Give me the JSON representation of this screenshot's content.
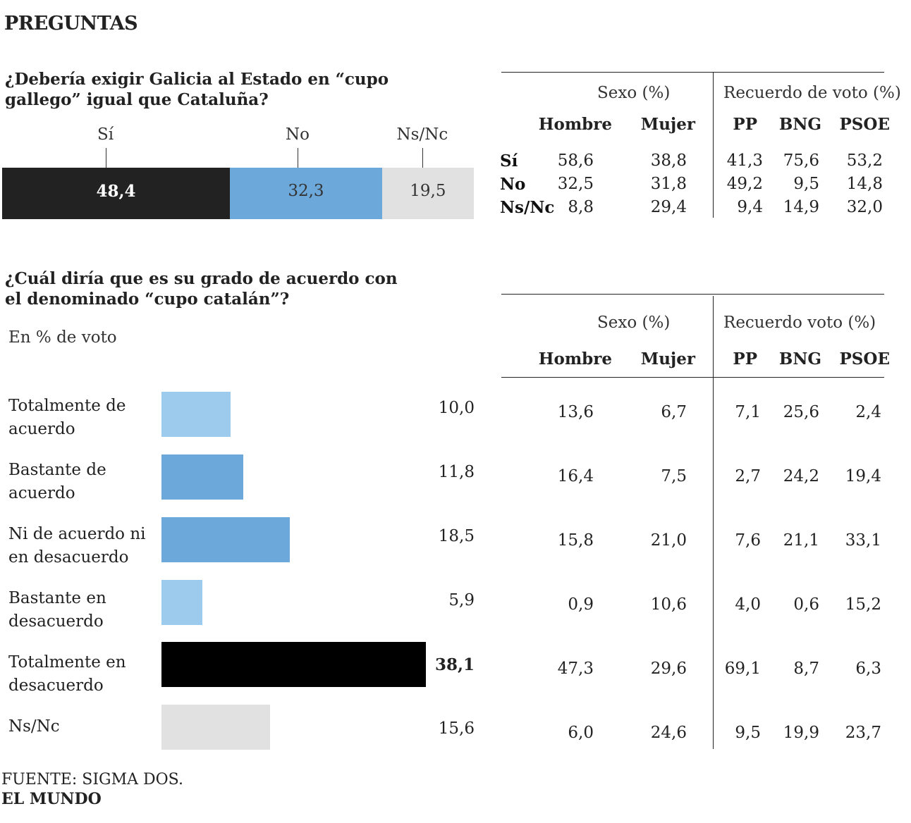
{
  "title": "PREGUNTAS",
  "q1": {
    "question": "¿Debería exigir Galicia al Estado en “cupo gallego” igual que Cataluña?",
    "table": {
      "group_sexo": "Sexo (%)",
      "group_voto": "Recuerdo de voto (%)",
      "columns": [
        "Hombre",
        "Mujer",
        "PP",
        "BNG",
        "PSOE"
      ],
      "rows": [
        {
          "label": "Sí",
          "values": [
            "58,6",
            "38,8",
            "41,3",
            "75,6",
            "53,2"
          ]
        },
        {
          "label": "No",
          "values": [
            "32,5",
            "31,8",
            "49,2",
            "9,5",
            "14,8"
          ]
        },
        {
          "label": "Ns/Nc",
          "values": [
            "8,8",
            "29,4",
            "9,4",
            "14,9",
            "32,0"
          ]
        }
      ]
    }
  },
  "q2": {
    "question": "¿Cuál diría que es su grado de acuerdo con el denominado “cupo catalán”?",
    "subtitle": "En % de voto",
    "table": {
      "group_sexo": "Sexo (%)",
      "group_voto": "Recuerdo voto (%)",
      "columns": [
        "Hombre",
        "Mujer",
        "PP",
        "BNG",
        "PSOE"
      ],
      "rows": [
        [
          "13,6",
          "6,7",
          "7,1",
          "25,6",
          "2,4"
        ],
        [
          "16,4",
          "7,5",
          "2,7",
          "24,2",
          "19,4"
        ],
        [
          "15,8",
          "21,0",
          "7,6",
          "21,1",
          "33,1"
        ],
        [
          "0,9",
          "10,6",
          "4,0",
          "0,6",
          "15,2"
        ],
        [
          "47,3",
          "29,6",
          "69,1",
          "8,7",
          "6,3"
        ],
        [
          "6,0",
          "24,6",
          "9,5",
          "19,9",
          "23,7"
        ]
      ]
    }
  },
  "source": "FUENTE: SIGMA DOS.",
  "brand": "EL MUNDO",
  "colors": {
    "dark": "#222222",
    "black": "#000000",
    "mid_blue": "#6ca8da",
    "light_blue": "#9dcbee",
    "grey": "#e1e1e1"
  },
  "chart_data": [
    {
      "type": "bar",
      "orientation": "stacked-horizontal",
      "categories": [
        "Sí",
        "No",
        "Ns/Nc"
      ],
      "values": [
        48.4,
        32.3,
        19.5
      ],
      "value_labels": [
        "48,4",
        "32,3",
        "19,5"
      ],
      "colors": [
        "#222222",
        "#6ca8da",
        "#e1e1e1"
      ],
      "xlim": [
        0,
        100.2
      ]
    },
    {
      "type": "bar",
      "orientation": "horizontal",
      "categories": [
        "Totalmente de acuerdo",
        "Bastante de acuerdo",
        "Ni de acuerdo ni en desacuerdo",
        "Bastante en desacuerdo",
        "Totalmente en desacuerdo",
        "Ns/Nc"
      ],
      "values": [
        10.0,
        11.8,
        18.5,
        5.9,
        38.1,
        15.6
      ],
      "value_labels": [
        "10,0",
        "11,8",
        "18,5",
        "5,9",
        "38,1",
        "15,6"
      ],
      "colors": [
        "#9dcbee",
        "#6ca8da",
        "#6ca8da",
        "#9dcbee",
        "#000000",
        "#e1e1e1"
      ],
      "xlim": [
        0,
        38.1
      ]
    }
  ]
}
